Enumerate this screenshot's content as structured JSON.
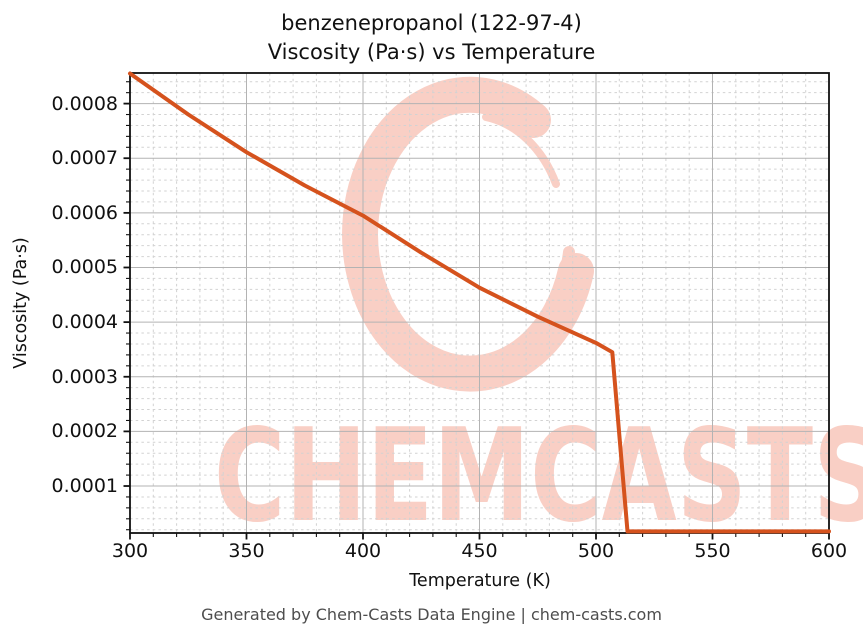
{
  "figure": {
    "title_line1": "benzenepropanol (122-97-4)",
    "title_line2": "Viscosity (Pa·s) vs Temperature",
    "footer": "Generated by Chem-Casts Data Engine | chem-casts.com"
  },
  "watermark": {
    "text": "CHEMCASTS",
    "logo": "chemcasts-c-brush-circle",
    "color": "#f9cfc5"
  },
  "colors": {
    "line": "#d5521d",
    "grid_major": "#b3b3b3",
    "grid_minor": "#d2d2d2",
    "spine": "#111111",
    "text": "#111111",
    "footer_text": "#4d4d4d"
  },
  "chart_data": {
    "type": "line",
    "title": "benzenepropanol (122-97-4) — Viscosity (Pa·s) vs Temperature",
    "xlabel": "Temperature (K)",
    "ylabel": "Viscosity (Pa·s)",
    "xlim": [
      300,
      600
    ],
    "ylim": [
      1.4e-05,
      0.000856
    ],
    "x_ticks": [
      300,
      350,
      400,
      450,
      500,
      550,
      600
    ],
    "x_tick_labels": [
      "300",
      "350",
      "400",
      "450",
      "500",
      "550",
      "600"
    ],
    "x_minor_step": 10,
    "y_ticks": [
      0.0001,
      0.0002,
      0.0003,
      0.0004,
      0.0005,
      0.0006,
      0.0007,
      0.0008
    ],
    "y_tick_labels": [
      "0.0001",
      "0.0002",
      "0.0003",
      "0.0004",
      "0.0005",
      "0.0006",
      "0.0007",
      "0.0008"
    ],
    "y_minor_step": 2e-05,
    "grid": {
      "major": "solid",
      "minor": "dashed"
    },
    "legend": "none",
    "series": [
      {
        "name": "viscosity",
        "color": "#d5521d",
        "points": [
          [
            300,
            0.000855
          ],
          [
            325,
            0.00078
          ],
          [
            350,
            0.000711
          ],
          [
            375,
            0.00065
          ],
          [
            400,
            0.000595
          ],
          [
            425,
            0.000527
          ],
          [
            450,
            0.000463
          ],
          [
            475,
            0.00041
          ],
          [
            500,
            0.000362
          ],
          [
            507,
            0.000345
          ],
          [
            513.5,
            1.7e-05
          ],
          [
            600,
            1.7e-05
          ]
        ]
      }
    ]
  }
}
